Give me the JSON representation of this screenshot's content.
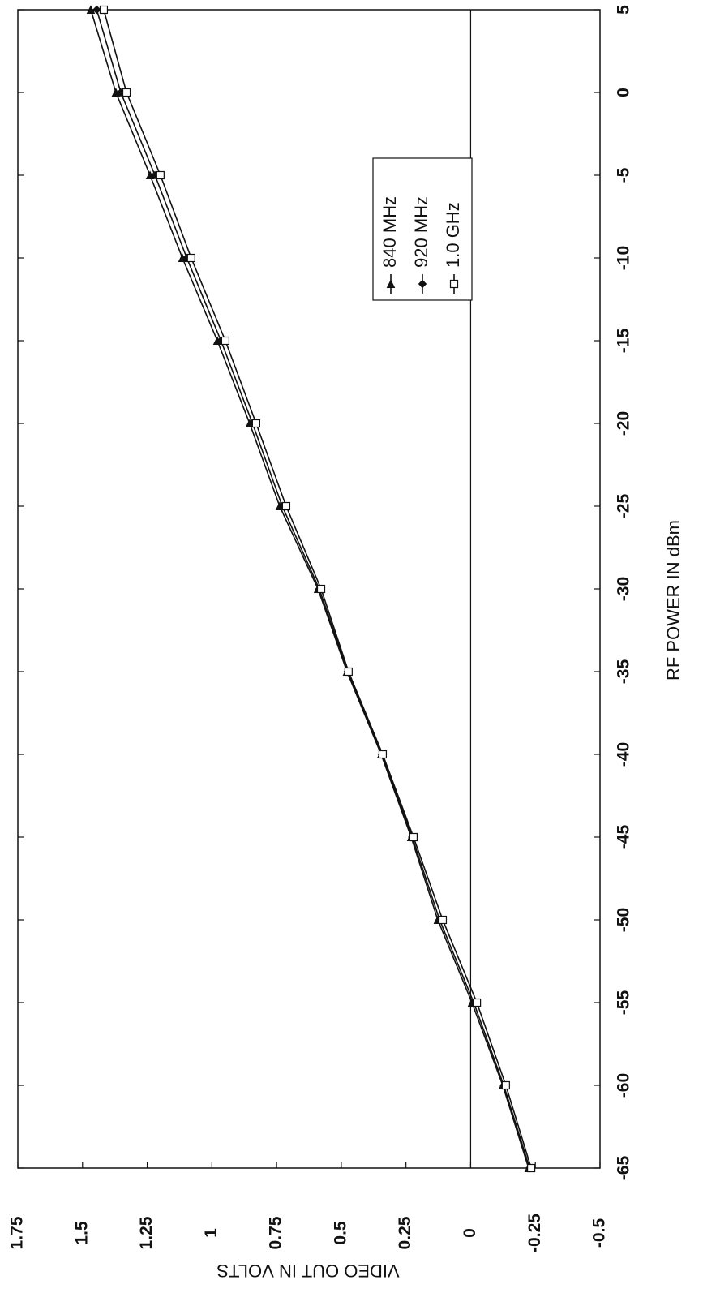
{
  "chart_data": {
    "type": "line",
    "x_label": "RF POWER IN dBm",
    "y_label": "VIDEO OUT IN VOLTS",
    "x": [
      -65,
      -60,
      -55,
      -50,
      -45,
      -40,
      -35,
      -30,
      -25,
      -20,
      -15,
      -10,
      -5,
      0,
      5
    ],
    "series": [
      {
        "name": "840 MHz",
        "color": "#111111",
        "marker": "triangle",
        "values": [
          -0.224,
          -0.124,
          -0.005,
          0.127,
          0.23,
          0.346,
          0.478,
          0.59,
          0.738,
          0.854,
          0.979,
          1.114,
          1.239,
          1.371,
          1.468
        ]
      },
      {
        "name": "920 MHz",
        "color": "#111111",
        "marker": "diamond",
        "values": [
          -0.228,
          -0.128,
          -0.012,
          0.12,
          0.226,
          0.343,
          0.475,
          0.585,
          0.728,
          0.843,
          0.965,
          1.097,
          1.22,
          1.352,
          1.445
        ]
      },
      {
        "name": "1.0 GHz",
        "color": "#111111",
        "marker": "square",
        "values": [
          -0.234,
          -0.136,
          -0.024,
          0.108,
          0.221,
          0.34,
          0.472,
          0.578,
          0.713,
          0.829,
          0.948,
          1.08,
          1.199,
          1.33,
          1.418
        ]
      }
    ],
    "xlim": [
      -65,
      5
    ],
    "xticks": [
      -65,
      -60,
      -55,
      -50,
      -45,
      -40,
      -35,
      -30,
      -25,
      -20,
      -15,
      -10,
      -5,
      0,
      5
    ],
    "ylim": [
      -0.5,
      1.75
    ],
    "yticks": [
      -0.5,
      -0.25,
      0,
      0.25,
      0.5,
      0.75,
      1,
      1.25,
      1.5,
      1.75
    ],
    "grid": false,
    "legend": "right"
  }
}
